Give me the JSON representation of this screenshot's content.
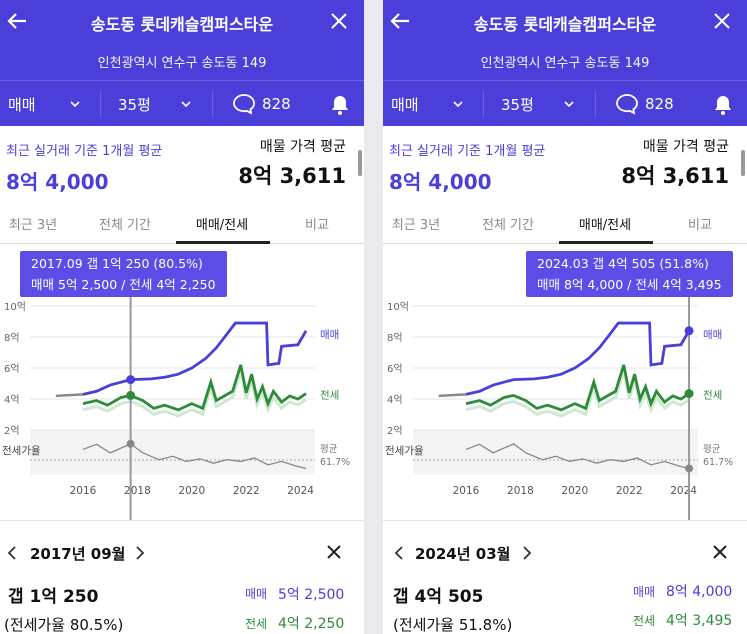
{
  "panels": [
    {
      "header": {
        "title": "송도동 롯데캐슬캠퍼스타운",
        "address": "인천광역시 연수구 송도동 149"
      },
      "filters": {
        "trade_type": "매매",
        "size": "35평",
        "comments": "828"
      },
      "recent": {
        "label": "최근 실거래 기준 1개월 평균",
        "value": "8억 4,000"
      },
      "listing": {
        "label": "매물 가격 평균",
        "value": "8억 3,611"
      },
      "tabs": [
        "최근 3년",
        "전체 기간",
        "매매/전세",
        "비교"
      ],
      "active_tab": 2,
      "tooltip": {
        "line1": "2017.09  갭 1억 250 (80.5%)",
        "line2": "매매 5억 2,500 / 전세 4억 2,250"
      },
      "detail": {
        "year_month": "2017년 09월",
        "gap": "갭 1억 250",
        "ratio": "(전세가율 80.5%)",
        "sale_label": "매매",
        "sale_value": "5억 2,500",
        "jeonse_label": "전세",
        "jeonse_value": "4억 2,250"
      }
    },
    {
      "header": {
        "title": "송도동 롯데캐슬캠퍼스타운",
        "address": "인천광역시 연수구 송도동 149"
      },
      "filters": {
        "trade_type": "매매",
        "size": "35평",
        "comments": "828"
      },
      "recent": {
        "label": "최근 실거래 기준 1개월 평균",
        "value": "8억 4,000"
      },
      "listing": {
        "label": "매물 가격 평균",
        "value": "8억 3,611"
      },
      "tabs": [
        "최근 3년",
        "전체 기간",
        "매매/전세",
        "비교"
      ],
      "active_tab": 2,
      "tooltip": {
        "line1": "2024.03  갭 4억 505 (51.8%)",
        "line2": "매매 8억 4,000 / 전세 4억 3,495"
      },
      "detail": {
        "year_month": "2024년 03월",
        "gap": "갭 4억 505",
        "ratio": "(전세가율 51.8%)",
        "sale_label": "매매",
        "sale_value": "8억 4,000",
        "jeonse_label": "전세",
        "jeonse_value": "4억 3,495"
      }
    }
  ],
  "chart_data": {
    "type": "line",
    "x_ticks": [
      "2016",
      "2018",
      "2020",
      "2022",
      "2024"
    ],
    "y_ticks": [
      "2억",
      "4억",
      "6억",
      "8억",
      "10억"
    ],
    "ylim": [
      2,
      10
    ],
    "series_labels": {
      "sale": "매매",
      "jeonse": "전세",
      "ratio": "전세가율"
    },
    "avg_label": "평균",
    "avg_ratio": "61.7%",
    "series": [
      {
        "name": "매매",
        "color": "#4b3fd9",
        "points": [
          [
            2015.0,
            4.2
          ],
          [
            2016.0,
            4.3
          ],
          [
            2016.5,
            4.5
          ],
          [
            2017.0,
            4.9
          ],
          [
            2017.75,
            5.25
          ],
          [
            2018.5,
            5.3
          ],
          [
            2019.0,
            5.4
          ],
          [
            2019.5,
            5.6
          ],
          [
            2020.0,
            6.0
          ],
          [
            2020.5,
            6.6
          ],
          [
            2020.9,
            7.3
          ],
          [
            2021.3,
            8.2
          ],
          [
            2021.6,
            8.9
          ],
          [
            2022.5,
            8.9
          ],
          [
            2022.75,
            8.9
          ],
          [
            2022.8,
            6.2
          ],
          [
            2023.2,
            6.3
          ],
          [
            2023.3,
            7.4
          ],
          [
            2023.9,
            7.5
          ],
          [
            2024.2,
            8.4
          ]
        ]
      },
      {
        "name": "전세",
        "color": "#2e8b3a",
        "points": [
          [
            2016.0,
            3.7
          ],
          [
            2016.5,
            3.9
          ],
          [
            2016.9,
            3.6
          ],
          [
            2017.4,
            4.1
          ],
          [
            2017.75,
            4.23
          ],
          [
            2018.2,
            3.9
          ],
          [
            2018.6,
            3.4
          ],
          [
            2019.0,
            3.6
          ],
          [
            2019.5,
            3.3
          ],
          [
            2020.0,
            3.7
          ],
          [
            2020.4,
            3.4
          ],
          [
            2020.7,
            5.1
          ],
          [
            2020.9,
            3.9
          ],
          [
            2021.2,
            4.2
          ],
          [
            2021.5,
            4.5
          ],
          [
            2021.8,
            6.2
          ],
          [
            2022.0,
            4.4
          ],
          [
            2022.2,
            5.6
          ],
          [
            2022.4,
            4.0
          ],
          [
            2022.6,
            4.8
          ],
          [
            2022.8,
            3.7
          ],
          [
            2023.0,
            4.5
          ],
          [
            2023.3,
            3.8
          ],
          [
            2023.6,
            4.2
          ],
          [
            2023.9,
            4.0
          ],
          [
            2024.2,
            4.35
          ]
        ]
      },
      {
        "name": "전세가율",
        "color": "#888888",
        "points": [
          [
            2016.0,
            0.74
          ],
          [
            2016.5,
            0.8
          ],
          [
            2017.0,
            0.7
          ],
          [
            2017.75,
            0.805
          ],
          [
            2018.2,
            0.7
          ],
          [
            2018.8,
            0.62
          ],
          [
            2019.3,
            0.66
          ],
          [
            2019.8,
            0.6
          ],
          [
            2020.3,
            0.63
          ],
          [
            2020.8,
            0.58
          ],
          [
            2021.3,
            0.62
          ],
          [
            2021.8,
            0.6
          ],
          [
            2022.3,
            0.64
          ],
          [
            2022.8,
            0.56
          ],
          [
            2023.3,
            0.6
          ],
          [
            2023.8,
            0.55
          ],
          [
            2024.2,
            0.518
          ]
        ]
      }
    ]
  }
}
